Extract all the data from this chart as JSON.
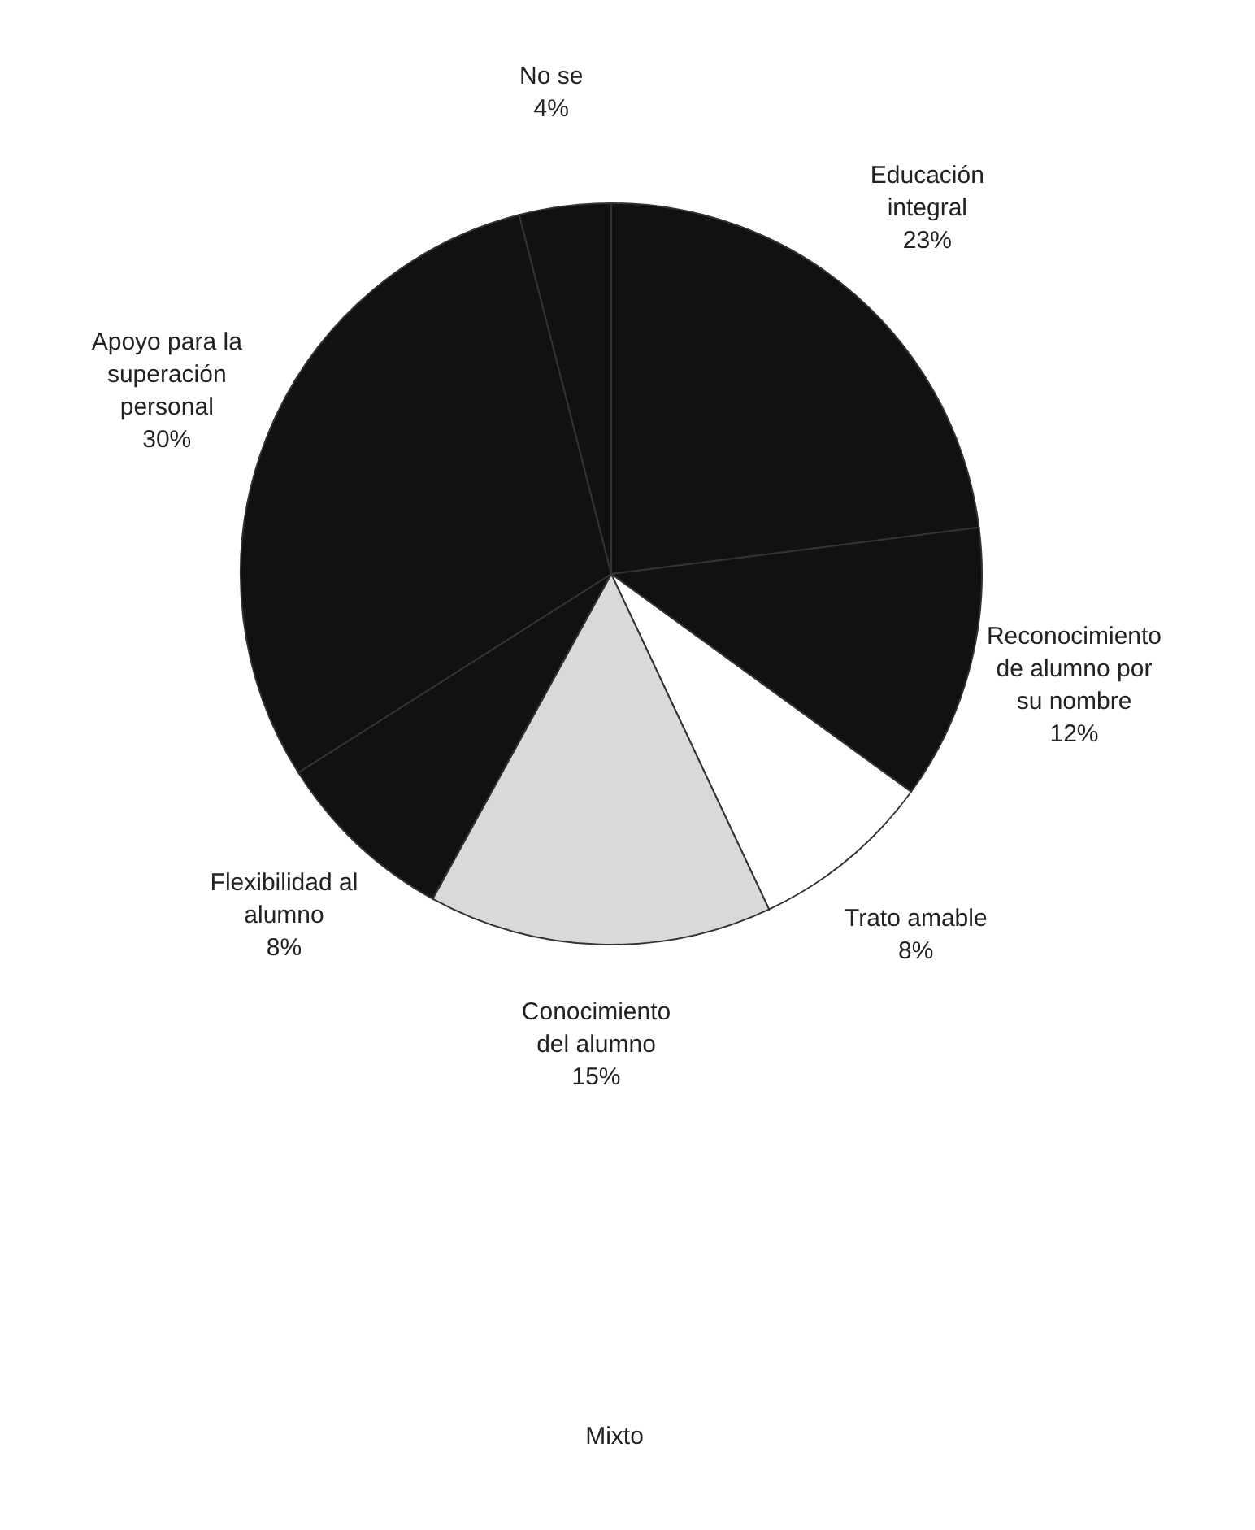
{
  "chart_data": {
    "type": "pie",
    "categories": [
      "No se",
      "Educación integral",
      "Reconocimiento de alumno por su nombre",
      "Trato amable",
      "Conocimiento del alumno",
      "Flexibilidad al alumno",
      "Apoyo para la superación personal"
    ],
    "values": [
      4,
      23,
      12,
      8,
      15,
      8,
      30
    ],
    "colors": [
      "#111111",
      "#111111",
      "#111111",
      "#ffffff",
      "#d9d9d9",
      "#111111",
      "#111111"
    ],
    "value_labels": [
      "4%",
      "23%",
      "12%",
      "8%",
      "15%",
      "8%",
      "30%"
    ],
    "annotations": [
      "Mixto"
    ]
  }
}
